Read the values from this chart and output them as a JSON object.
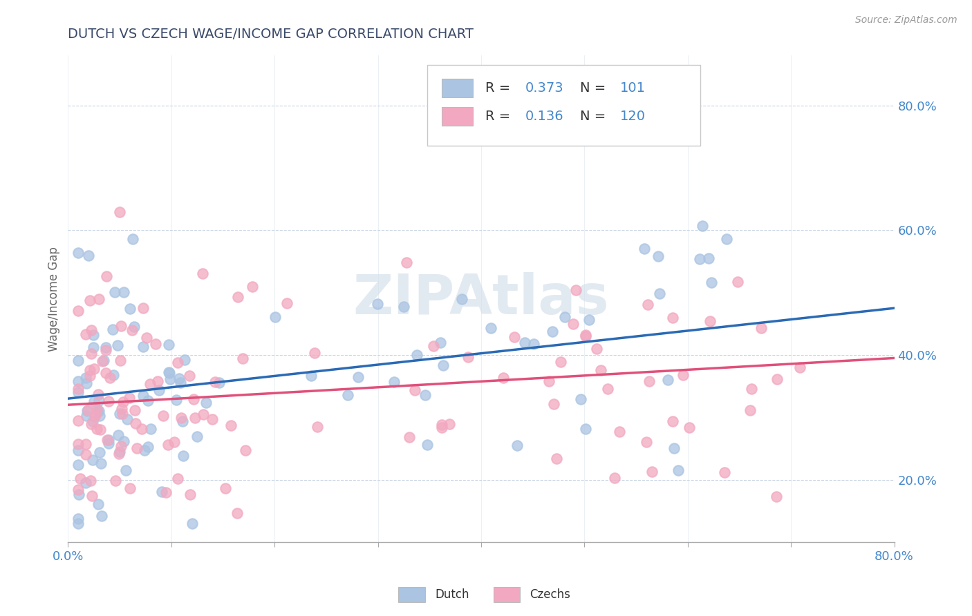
{
  "title": "DUTCH VS CZECH WAGE/INCOME GAP CORRELATION CHART",
  "source_text": "Source: ZipAtlas.com",
  "ylabel": "Wage/Income Gap",
  "xlim": [
    0.0,
    0.8
  ],
  "ylim": [
    0.1,
    0.88
  ],
  "xticks": [
    0.0,
    0.1,
    0.2,
    0.3,
    0.4,
    0.5,
    0.6,
    0.7,
    0.8
  ],
  "xticklabels": [
    "0.0%",
    "",
    "",
    "",
    "",
    "",
    "",
    "",
    "80.0%"
  ],
  "yticks_right": [
    0.2,
    0.4,
    0.6,
    0.8
  ],
  "yticklabels_right": [
    "20.0%",
    "40.0%",
    "60.0%",
    "80.0%"
  ],
  "dutch_color": "#aac4e2",
  "czech_color": "#f2a8c0",
  "dutch_line_color": "#2a6ab5",
  "czech_line_color": "#e0507a",
  "dutch_R": 0.373,
  "dutch_N": 101,
  "czech_R": 0.136,
  "czech_N": 120,
  "watermark": "ZIPAtlas",
  "watermark_color": "#d0dce8",
  "background_color": "#ffffff",
  "grid_color": "#c8d4e4",
  "title_color": "#3a4a6a",
  "axis_label_color": "#666666",
  "tick_label_color": "#4488cc",
  "legend_value_color": "#4488cc",
  "dutch_line_start_y": 0.33,
  "dutch_line_end_y": 0.475,
  "czech_line_start_y": 0.32,
  "czech_line_end_y": 0.395
}
